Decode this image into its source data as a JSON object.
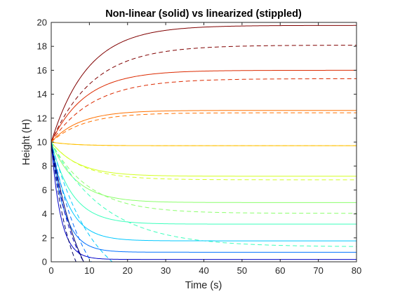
{
  "chart_data": {
    "type": "line",
    "title": "Non-linear (solid) vs linearized (stippled)",
    "xlabel": "Time (s)",
    "ylabel": "Height (H)",
    "xlim": [
      0,
      80
    ],
    "ylim": [
      0,
      20
    ],
    "xticks": [
      "0",
      "10",
      "20",
      "30",
      "40",
      "50",
      "60",
      "70",
      "80"
    ],
    "yticks": [
      "0",
      "2",
      "4",
      "6",
      "8",
      "10",
      "12",
      "14",
      "16",
      "18",
      "20"
    ],
    "grid": false,
    "legend": "none",
    "initial_height": 10,
    "pairs": [
      {
        "color": "#800000",
        "solid_final": 19.75,
        "solid_tau": 9.5,
        "dashed_final": 18.1,
        "dashed_tau": 11
      },
      {
        "color": "#dc2a00",
        "solid_final": 16.0,
        "solid_tau": 9,
        "dashed_final": 15.3,
        "dashed_tau": 11
      },
      {
        "color": "#ff7100",
        "solid_final": 12.65,
        "solid_tau": 7.5,
        "dashed_final": 12.45,
        "dashed_tau": 8.5
      },
      {
        "color": "#ffc000",
        "solid_final": 9.7,
        "solid_tau": 6,
        "dashed_final": 9.7,
        "dashed_tau": 6
      },
      {
        "color": "#d4ff23",
        "solid_final": 7.15,
        "solid_tau": 7,
        "dashed_final": 6.85,
        "dashed_tau": 8
      },
      {
        "color": "#8cff6c",
        "solid_final": 4.95,
        "solid_tau": 6.5,
        "dashed_final": 4.05,
        "dashed_tau": 10
      },
      {
        "color": "#3cffbc",
        "solid_final": 3.15,
        "solid_tau": 5.5,
        "dashed_final": 1.25,
        "dashed_tau": 14
      },
      {
        "color": "#00c8ff",
        "solid_final": 1.75,
        "solid_tau": 4.5,
        "dashed_final": 0.0,
        "dashed_tau": 11,
        "dashed_zero": 16
      },
      {
        "color": "#0070ff",
        "solid_final": 0.8,
        "solid_tau": 3.5,
        "dashed_final": 0.0,
        "dashed_tau": 9,
        "dashed_zero": 10.5
      },
      {
        "color": "#0000c8",
        "solid_final": 0.2,
        "solid_tau": 2.5,
        "dashed_final": 0.0,
        "dashed_tau": 6,
        "dashed_zero": 8.5
      },
      {
        "color": "#000060",
        "solid_final": 0.0,
        "solid_tau": 8,
        "solid_zero": 8.5,
        "dashed_final": 0.0,
        "dashed_tau": 5,
        "dashed_zero": 6.5
      }
    ]
  }
}
